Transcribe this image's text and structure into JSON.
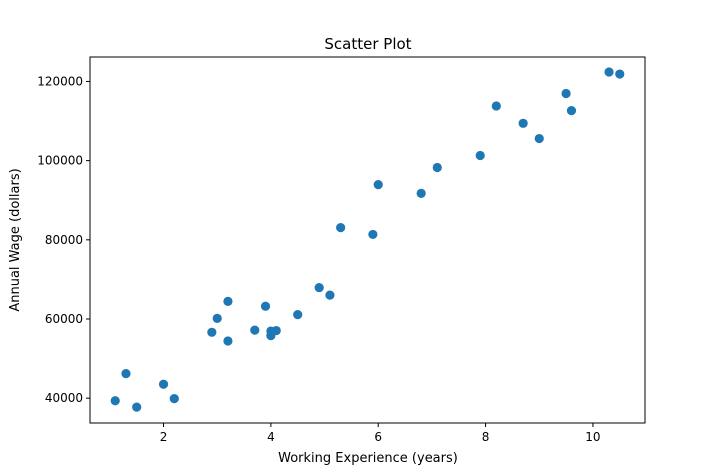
{
  "chart_data": {
    "type": "scatter",
    "title": "Scatter Plot",
    "xlabel": "Working Experience (years)",
    "ylabel": "Annual Wage (dollars)",
    "xlim": [
      0.63,
      10.97
    ],
    "ylim": [
      33730,
      126180
    ],
    "xticks": [
      2,
      4,
      6,
      8,
      10
    ],
    "yticks": [
      40000,
      60000,
      80000,
      100000,
      120000
    ],
    "grid": false,
    "marker_color": "#1f77b4",
    "series": [
      {
        "x": [
          1.1,
          1.3,
          1.5,
          2.0,
          2.2,
          2.9,
          3.0,
          3.2,
          3.2,
          3.7,
          3.9,
          4.0,
          4.0,
          4.1,
          4.5,
          4.9,
          5.1,
          5.3,
          5.9,
          6.0,
          6.8,
          7.1,
          7.9,
          8.2,
          8.7,
          9.0,
          9.5,
          9.6,
          10.3,
          10.5
        ],
        "y": [
          39343,
          46205,
          37731,
          43525,
          39891,
          56642,
          60150,
          54445,
          64445,
          57189,
          63218,
          55794,
          56957,
          57081,
          61111,
          67938,
          66029,
          83088,
          81363,
          93940,
          91738,
          98273,
          101302,
          113812,
          109431,
          105582,
          116969,
          112635,
          122391,
          121872
        ]
      }
    ]
  }
}
